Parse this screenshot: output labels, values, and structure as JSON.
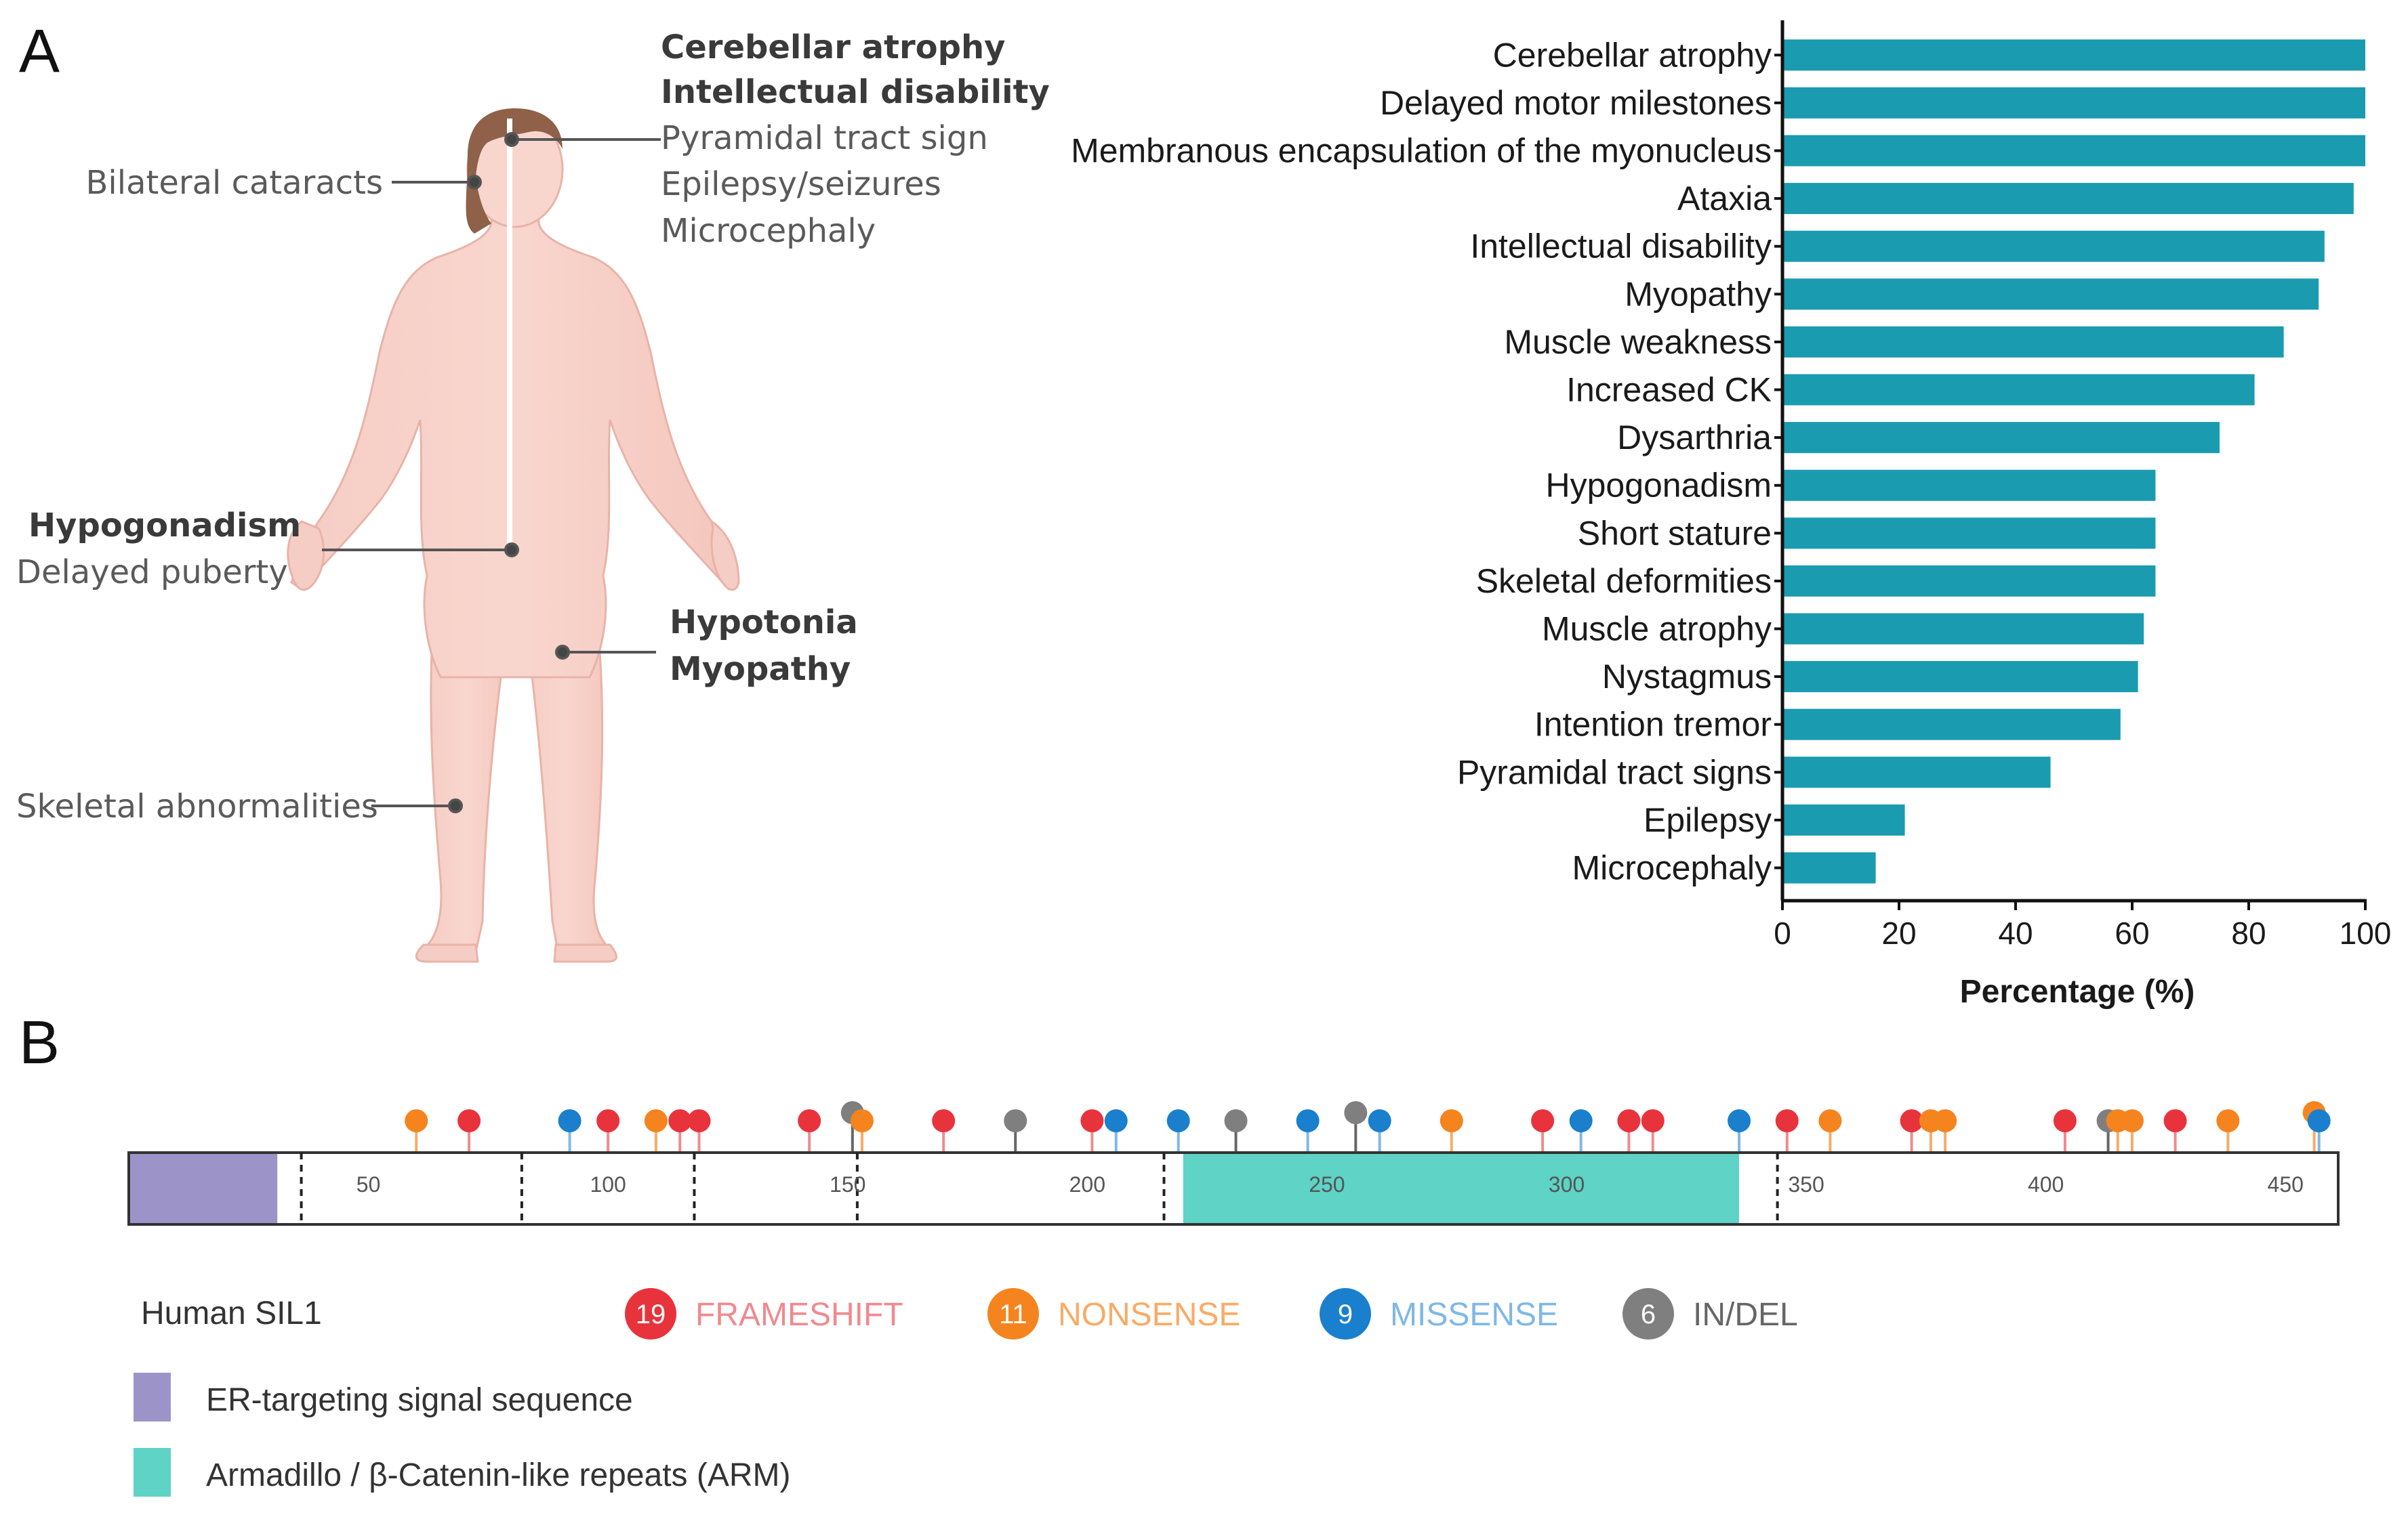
{
  "panels": {
    "a": "A",
    "b": "B"
  },
  "body_labels": {
    "head_right": [
      "Cerebellar atrophy",
      "Intellectual disability",
      "Pyramidal tract sign",
      "Epilepsy/seizures",
      "Microcephaly"
    ],
    "eyes": "Bilateral cataracts",
    "pelvis": [
      "Hypogonadism",
      "Delayed puberty"
    ],
    "leg": [
      "Hypotonia",
      "Myopathy"
    ],
    "foot": "Skeletal abnormalities"
  },
  "chart_data": {
    "type": "bar",
    "orientation": "horizontal",
    "color": "#1a9bb0",
    "categories": [
      "Cerebellar atrophy",
      "Delayed motor milestones",
      "Membranous encapsulation of the myonucleus",
      "Ataxia",
      "Intellectual disability",
      "Myopathy",
      "Muscle weakness",
      "Increased CK",
      "Dysarthria",
      "Hypogonadism",
      "Short stature",
      "Skeletal deformities",
      "Muscle atrophy",
      "Nystagmus",
      "Intention tremor",
      "Pyramidal tract signs",
      "Epilepsy",
      "Microcephaly"
    ],
    "values": [
      100,
      100,
      100,
      98,
      93,
      92,
      86,
      81,
      75,
      64,
      64,
      64,
      62,
      61,
      58,
      46,
      21,
      16
    ],
    "xlim": [
      0,
      100
    ],
    "xticks": [
      "0",
      "20",
      "40",
      "60",
      "80",
      "100"
    ],
    "xlabel": "Percentage  (%)"
  },
  "protein": {
    "name": "Human SIL1",
    "length": 461,
    "signal_end": 31,
    "arm_start": 220,
    "arm_end": 336,
    "exon_boundaries": [
      36,
      82,
      118,
      152,
      216,
      344
    ],
    "tick_labels": [
      "50",
      "100",
      "150",
      "200",
      "250",
      "300",
      "350",
      "400",
      "450"
    ],
    "colors": {
      "signal": "#9c93c8",
      "arm": "#5ed3c6",
      "frameshift": "#e8333c",
      "nonsense": "#f5841f",
      "missense": "#1a7fcc",
      "indel": "#7f7f7f"
    },
    "variants": [
      {
        "pos": 60,
        "type": "nonsense"
      },
      {
        "pos": 71,
        "type": "frameshift"
      },
      {
        "pos": 92,
        "type": "missense"
      },
      {
        "pos": 100,
        "type": "frameshift"
      },
      {
        "pos": 110,
        "type": "nonsense"
      },
      {
        "pos": 115,
        "type": "frameshift"
      },
      {
        "pos": 119,
        "type": "frameshift"
      },
      {
        "pos": 142,
        "type": "frameshift"
      },
      {
        "pos": 151,
        "type": "indel",
        "high": true
      },
      {
        "pos": 153,
        "type": "nonsense"
      },
      {
        "pos": 170,
        "type": "frameshift"
      },
      {
        "pos": 185,
        "type": "indel"
      },
      {
        "pos": 201,
        "type": "frameshift"
      },
      {
        "pos": 206,
        "type": "missense"
      },
      {
        "pos": 219,
        "type": "missense"
      },
      {
        "pos": 231,
        "type": "indel"
      },
      {
        "pos": 246,
        "type": "missense"
      },
      {
        "pos": 256,
        "type": "indel",
        "high": true
      },
      {
        "pos": 261,
        "type": "missense"
      },
      {
        "pos": 276,
        "type": "nonsense"
      },
      {
        "pos": 295,
        "type": "frameshift"
      },
      {
        "pos": 303,
        "type": "missense"
      },
      {
        "pos": 313,
        "type": "frameshift"
      },
      {
        "pos": 318,
        "type": "frameshift"
      },
      {
        "pos": 336,
        "type": "missense"
      },
      {
        "pos": 346,
        "type": "frameshift"
      },
      {
        "pos": 355,
        "type": "nonsense"
      },
      {
        "pos": 372,
        "type": "frameshift"
      },
      {
        "pos": 376,
        "type": "nonsense"
      },
      {
        "pos": 379,
        "type": "nonsense"
      },
      {
        "pos": 404,
        "type": "frameshift"
      },
      {
        "pos": 413,
        "type": "indel"
      },
      {
        "pos": 415,
        "type": "nonsense"
      },
      {
        "pos": 418,
        "type": "nonsense"
      },
      {
        "pos": 427,
        "type": "frameshift"
      },
      {
        "pos": 438,
        "type": "nonsense"
      },
      {
        "pos": 456,
        "type": "nonsense",
        "high": true
      },
      {
        "pos": 457,
        "type": "missense"
      }
    ]
  },
  "legend": {
    "counts": [
      {
        "count": "19",
        "label": "FRAMESHIFT",
        "type": "frameshift"
      },
      {
        "count": "11",
        "label": "NONSENSE",
        "type": "nonsense"
      },
      {
        "count": "9",
        "label": "MISSENSE",
        "type": "missense"
      },
      {
        "count": "6",
        "label": "IN/DEL",
        "type": "indel"
      }
    ],
    "domains": [
      {
        "label": "ER-targeting signal sequence",
        "type": "signal"
      },
      {
        "label": "Armadillo / β-Catenin-like repeats (ARM)",
        "type": "arm"
      }
    ]
  },
  "colors": {
    "text_light": {
      "frameshift": "#f08a8f",
      "nonsense": "#f8ab66",
      "missense": "#7fb8e6",
      "indel": "#666666"
    }
  }
}
